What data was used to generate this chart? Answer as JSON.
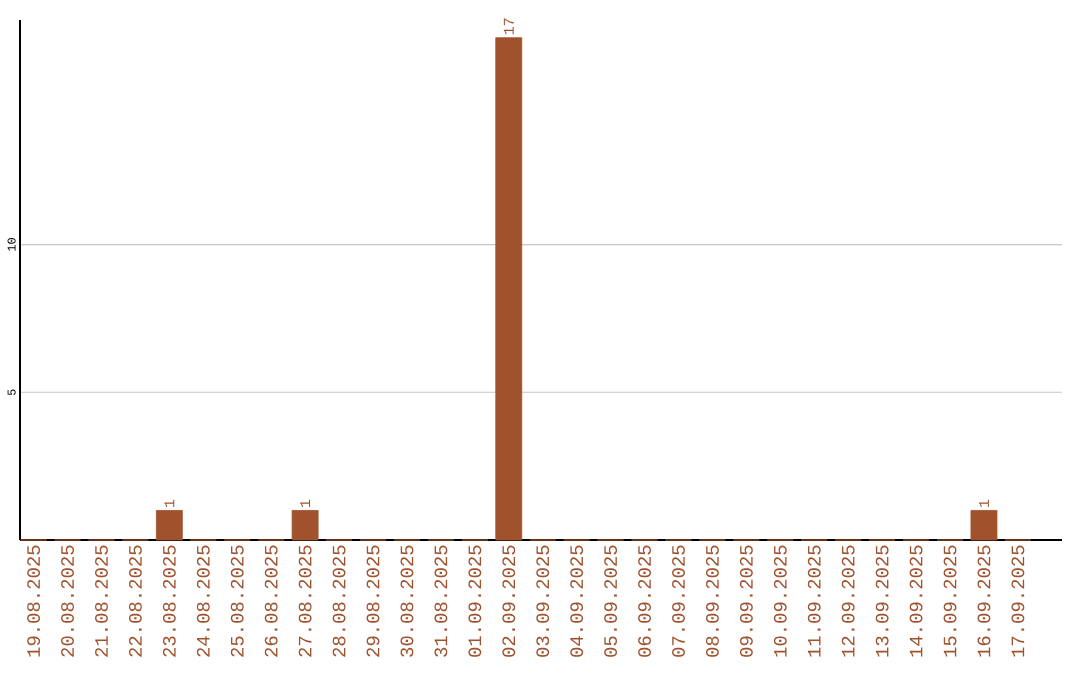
{
  "chart_data": {
    "type": "bar",
    "categories": [
      "19.08.2025",
      "20.08.2025",
      "21.08.2025",
      "22.08.2025",
      "23.08.2025",
      "24.08.2025",
      "25.08.2025",
      "26.08.2025",
      "27.08.2025",
      "28.08.2025",
      "29.08.2025",
      "30.08.2025",
      "31.08.2025",
      "01.09.2025",
      "02.09.2025",
      "03.09.2025",
      "04.09.2025",
      "05.09.2025",
      "06.09.2025",
      "07.09.2025",
      "08.09.2025",
      "09.09.2025",
      "10.09.2025",
      "11.09.2025",
      "12.09.2025",
      "13.09.2025",
      "14.09.2025",
      "15.09.2025",
      "16.09.2025",
      "17.09.2025"
    ],
    "values": [
      0,
      0,
      0,
      0,
      1,
      0,
      0,
      0,
      1,
      0,
      0,
      0,
      0,
      0,
      17,
      0,
      0,
      0,
      0,
      0,
      0,
      0,
      0,
      0,
      0,
      0,
      0,
      0,
      1,
      0
    ],
    "value_labels": [
      null,
      null,
      null,
      null,
      "1",
      null,
      null,
      null,
      "1",
      null,
      null,
      null,
      null,
      null,
      "17",
      null,
      null,
      null,
      null,
      null,
      null,
      null,
      null,
      null,
      null,
      null,
      null,
      null,
      "1",
      null
    ],
    "color": "#a0522d",
    "ylim": [
      0,
      17.6
    ],
    "yticks": [
      5,
      10
    ],
    "grid": "y"
  }
}
